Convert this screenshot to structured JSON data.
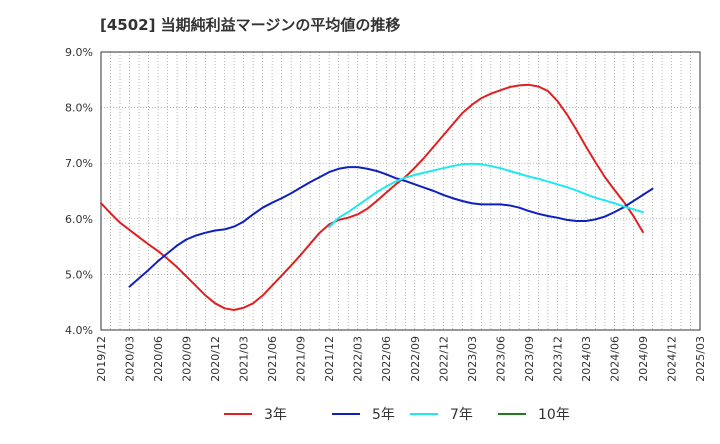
{
  "chart_data": {
    "type": "line",
    "title": "[4502]  当期純利益マージンの平均値の推移",
    "x_tick_labels": [
      "2019/12",
      "2020/03",
      "2020/06",
      "2020/09",
      "2020/12",
      "2021/03",
      "2021/06",
      "2021/09",
      "2021/12",
      "2022/03",
      "2022/06",
      "2022/09",
      "2022/12",
      "2023/03",
      "2023/06",
      "2023/09",
      "2023/12",
      "2024/03",
      "2024/06",
      "2024/09",
      "2024/12",
      "2025/03"
    ],
    "y_tick_labels": [
      "4.0%",
      "5.0%",
      "6.0%",
      "7.0%",
      "8.0%",
      "9.0%"
    ],
    "ylim": [
      4.0,
      9.0
    ],
    "y_unit": "%",
    "grid": true,
    "legend_position": "bottom",
    "series": [
      {
        "name": "3年",
        "color": "#e02020",
        "points": [
          [
            "2019/12",
            6.28
          ],
          [
            "2020/01",
            6.1
          ],
          [
            "2020/02",
            5.93
          ],
          [
            "2020/03",
            5.8
          ],
          [
            "2020/04",
            5.67
          ],
          [
            "2020/05",
            5.54
          ],
          [
            "2020/06",
            5.42
          ],
          [
            "2020/07",
            5.28
          ],
          [
            "2020/08",
            5.13
          ],
          [
            "2020/09",
            4.96
          ],
          [
            "2020/10",
            4.79
          ],
          [
            "2020/11",
            4.62
          ],
          [
            "2020/12",
            4.48
          ],
          [
            "2021/01",
            4.39
          ],
          [
            "2021/02",
            4.36
          ],
          [
            "2021/03",
            4.4
          ],
          [
            "2021/04",
            4.48
          ],
          [
            "2021/05",
            4.62
          ],
          [
            "2021/06",
            4.8
          ],
          [
            "2021/07",
            4.98
          ],
          [
            "2021/08",
            5.16
          ],
          [
            "2021/09",
            5.35
          ],
          [
            "2021/10",
            5.55
          ],
          [
            "2021/11",
            5.75
          ],
          [
            "2021/12",
            5.9
          ],
          [
            "2022/01",
            5.98
          ],
          [
            "2022/02",
            6.02
          ],
          [
            "2022/03",
            6.08
          ],
          [
            "2022/04",
            6.18
          ],
          [
            "2022/05",
            6.32
          ],
          [
            "2022/06",
            6.47
          ],
          [
            "2022/07",
            6.62
          ],
          [
            "2022/08",
            6.75
          ],
          [
            "2022/09",
            6.92
          ],
          [
            "2022/10",
            7.1
          ],
          [
            "2022/11",
            7.3
          ],
          [
            "2022/12",
            7.5
          ],
          [
            "2023/01",
            7.7
          ],
          [
            "2023/02",
            7.9
          ],
          [
            "2023/03",
            8.05
          ],
          [
            "2023/04",
            8.17
          ],
          [
            "2023/05",
            8.25
          ],
          [
            "2023/06",
            8.31
          ],
          [
            "2023/07",
            8.37
          ],
          [
            "2023/08",
            8.4
          ],
          [
            "2023/09",
            8.41
          ],
          [
            "2023/10",
            8.38
          ],
          [
            "2023/11",
            8.3
          ],
          [
            "2023/12",
            8.12
          ],
          [
            "2024/01",
            7.88
          ],
          [
            "2024/02",
            7.6
          ],
          [
            "2024/03",
            7.3
          ],
          [
            "2024/04",
            7.02
          ],
          [
            "2024/05",
            6.75
          ],
          [
            "2024/06",
            6.52
          ],
          [
            "2024/07",
            6.3
          ],
          [
            "2024/08",
            6.05
          ],
          [
            "2024/09",
            5.76
          ]
        ]
      },
      {
        "name": "5年",
        "color": "#1020c0",
        "points": [
          [
            "2020/03",
            4.78
          ],
          [
            "2020/04",
            4.93
          ],
          [
            "2020/05",
            5.08
          ],
          [
            "2020/06",
            5.24
          ],
          [
            "2020/07",
            5.38
          ],
          [
            "2020/08",
            5.52
          ],
          [
            "2020/09",
            5.63
          ],
          [
            "2020/10",
            5.7
          ],
          [
            "2020/11",
            5.75
          ],
          [
            "2020/12",
            5.79
          ],
          [
            "2021/01",
            5.81
          ],
          [
            "2021/02",
            5.86
          ],
          [
            "2021/03",
            5.95
          ],
          [
            "2021/04",
            6.08
          ],
          [
            "2021/05",
            6.2
          ],
          [
            "2021/06",
            6.29
          ],
          [
            "2021/07",
            6.37
          ],
          [
            "2021/08",
            6.46
          ],
          [
            "2021/09",
            6.56
          ],
          [
            "2021/10",
            6.66
          ],
          [
            "2021/11",
            6.75
          ],
          [
            "2021/12",
            6.84
          ],
          [
            "2022/01",
            6.9
          ],
          [
            "2022/02",
            6.93
          ],
          [
            "2022/03",
            6.93
          ],
          [
            "2022/04",
            6.9
          ],
          [
            "2022/05",
            6.86
          ],
          [
            "2022/06",
            6.8
          ],
          [
            "2022/07",
            6.73
          ],
          [
            "2022/08",
            6.68
          ],
          [
            "2022/09",
            6.62
          ],
          [
            "2022/10",
            6.56
          ],
          [
            "2022/11",
            6.5
          ],
          [
            "2022/12",
            6.43
          ],
          [
            "2023/01",
            6.37
          ],
          [
            "2023/02",
            6.32
          ],
          [
            "2023/03",
            6.28
          ],
          [
            "2023/04",
            6.26
          ],
          [
            "2023/05",
            6.26
          ],
          [
            "2023/06",
            6.26
          ],
          [
            "2023/07",
            6.24
          ],
          [
            "2023/08",
            6.2
          ],
          [
            "2023/09",
            6.14
          ],
          [
            "2023/10",
            6.09
          ],
          [
            "2023/11",
            6.05
          ],
          [
            "2023/12",
            6.02
          ],
          [
            "2024/01",
            5.98
          ],
          [
            "2024/02",
            5.96
          ],
          [
            "2024/03",
            5.96
          ],
          [
            "2024/04",
            5.99
          ],
          [
            "2024/05",
            6.04
          ],
          [
            "2024/06",
            6.12
          ],
          [
            "2024/07",
            6.21
          ],
          [
            "2024/08",
            6.32
          ],
          [
            "2024/09",
            6.43
          ],
          [
            "2024/10",
            6.54
          ]
        ]
      },
      {
        "name": "7年",
        "color": "#20e8f0",
        "points": [
          [
            "2021/12",
            5.85
          ],
          [
            "2022/01",
            6.02
          ],
          [
            "2022/02",
            6.12
          ],
          [
            "2022/03",
            6.24
          ],
          [
            "2022/04",
            6.36
          ],
          [
            "2022/05",
            6.48
          ],
          [
            "2022/06",
            6.58
          ],
          [
            "2022/07",
            6.67
          ],
          [
            "2022/08",
            6.74
          ],
          [
            "2022/09",
            6.79
          ],
          [
            "2022/10",
            6.83
          ],
          [
            "2022/11",
            6.87
          ],
          [
            "2022/12",
            6.91
          ],
          [
            "2023/01",
            6.95
          ],
          [
            "2023/02",
            6.98
          ],
          [
            "2023/03",
            6.99
          ],
          [
            "2023/04",
            6.98
          ],
          [
            "2023/05",
            6.95
          ],
          [
            "2023/06",
            6.91
          ],
          [
            "2023/07",
            6.86
          ],
          [
            "2023/08",
            6.81
          ],
          [
            "2023/09",
            6.76
          ],
          [
            "2023/10",
            6.72
          ],
          [
            "2023/11",
            6.67
          ],
          [
            "2023/12",
            6.62
          ],
          [
            "2024/01",
            6.57
          ],
          [
            "2024/02",
            6.51
          ],
          [
            "2024/03",
            6.44
          ],
          [
            "2024/04",
            6.38
          ],
          [
            "2024/05",
            6.33
          ],
          [
            "2024/06",
            6.28
          ],
          [
            "2024/07",
            6.22
          ],
          [
            "2024/08",
            6.17
          ],
          [
            "2024/09",
            6.12
          ]
        ]
      },
      {
        "name": "10年",
        "color": "#207a20",
        "points": []
      }
    ]
  }
}
